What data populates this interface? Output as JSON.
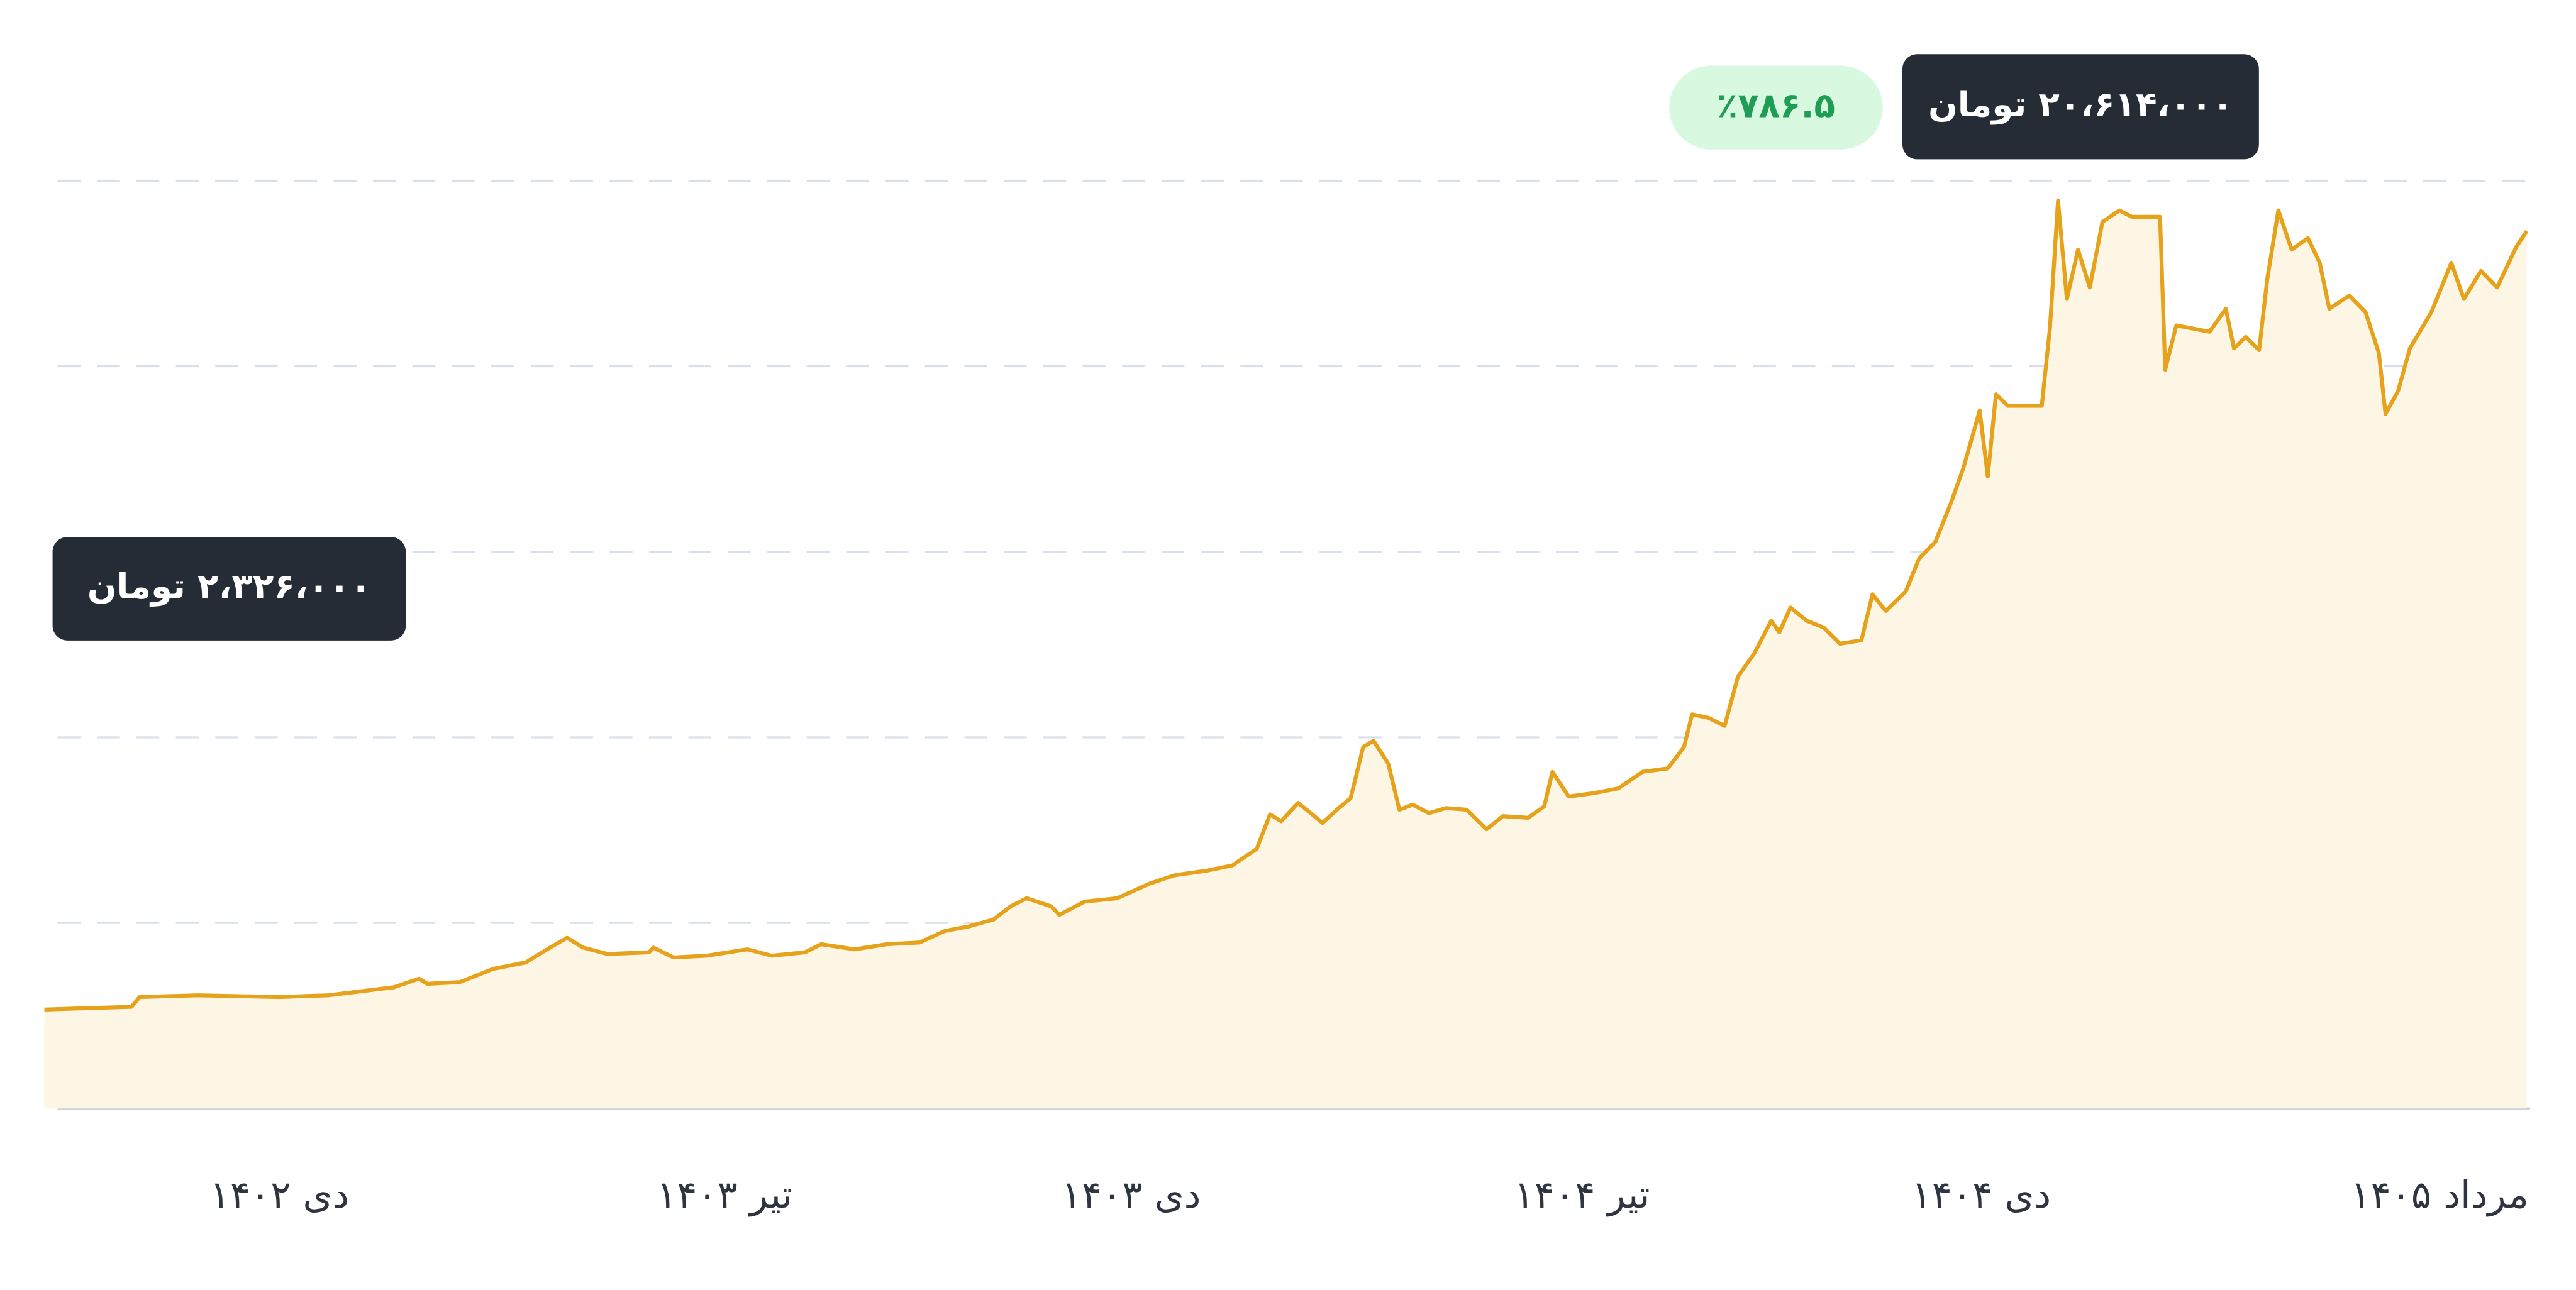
{
  "chart_data": {
    "type": "area",
    "color": "#e5a21a",
    "fill": "#fdf6e4",
    "grid": true,
    "x": [
      0,
      1.18,
      1.29,
      2.07,
      3.18,
      3.84,
      4.73,
      5.07,
      5.18,
      5.62,
      6.07,
      6.51,
      6.84,
      7.07,
      7.29,
      7.62,
      8.18,
      8.24,
      8.51,
      8.96,
      9.51,
      9.84,
      10.29,
      10.51,
      10.96,
      11.4,
      11.84,
      12.18,
      12.51,
      12.84,
      13.07,
      13.29,
      13.62,
      13.73,
      14.07,
      14.51,
      14.96,
      15.29,
      15.73,
      16.07,
      16.4,
      16.58,
      16.73,
      16.96,
      17.18,
      17.29,
      17.51,
      17.67,
      17.84,
      17.98,
      18.18,
      18.33,
      18.51,
      18.73,
      18.96,
      19.24,
      19.51,
      19.73,
      20.07,
      20.29,
      20.4,
      20.62,
      20.96,
      21.29,
      21.62,
      21.96,
      22.18,
      22.29,
      22.51,
      22.73,
      22.91,
      23.13,
      23.36,
      23.47,
      23.62,
      23.84,
      24.07,
      24.29,
      24.58,
      24.73,
      24.91,
      25.18,
      25.36,
      25.58,
      25.8,
      25.96,
      26.18,
      26.29,
      26.4,
      26.56,
      27.02,
      27.13,
      27.24,
      27.36,
      27.51,
      27.67,
      27.84,
      28.07,
      28.24,
      28.62,
      28.69,
      28.84,
      29.29,
      29.51,
      29.62,
      29.78,
      29.96,
      30.07,
      30.22,
      30.4,
      30.62,
      30.78,
      30.91,
      31.18,
      31.4,
      31.58,
      31.67,
      31.84,
      32.0,
      32.29,
      32.56,
      32.73,
      32.96,
      33.18,
      33.44,
      33.58
    ],
    "values": [
      2326000,
      2390000,
      2620000,
      2660000,
      2620000,
      2660000,
      2850000,
      3050000,
      2930000,
      2970000,
      3280000,
      3430000,
      3780000,
      4010000,
      3780000,
      3630000,
      3670000,
      3780000,
      3550000,
      3590000,
      3740000,
      3590000,
      3670000,
      3860000,
      3740000,
      3860000,
      3900000,
      4170000,
      4280000,
      4440000,
      4750000,
      4940000,
      4750000,
      4550000,
      4860000,
      4940000,
      5290000,
      5480000,
      5590000,
      5710000,
      6100000,
      6910000,
      6750000,
      7180000,
      6870000,
      6710000,
      7060000,
      7290000,
      8490000,
      8640000,
      8100000,
      7020000,
      7140000,
      6940000,
      7060000,
      7020000,
      6560000,
      6870000,
      6830000,
      7100000,
      7910000,
      7330000,
      7410000,
      7520000,
      7910000,
      7990000,
      8490000,
      9260000,
      9180000,
      8990000,
      10150000,
      10690000,
      11460000,
      11190000,
      11770000,
      11460000,
      11300000,
      10920000,
      11000000,
      12080000,
      11690000,
      12150000,
      12920000,
      13310000,
      14270000,
      15050000,
      16400000,
      14850000,
      16780000,
      16510000,
      16510000,
      18330000,
      21330000,
      19020000,
      20180000,
      19290000,
      20830000,
      21100000,
      20950000,
      20950000,
      17360000,
      18400000,
      18250000,
      18790000,
      17860000,
      18130000,
      17820000,
      19480000,
      21100000,
      20180000,
      20450000,
      19870000,
      18790000,
      19100000,
      18710000,
      17750000,
      16320000,
      16860000,
      17860000,
      18710000,
      19870000,
      19020000,
      19680000,
      19290000,
      20250000,
      20614000
    ],
    "xlim": [
      0,
      33.58
    ],
    "xticks": [
      {
        "value": 3.18,
        "label": "دی ۱۴۰۲"
      },
      {
        "value": 9.2,
        "label": "تیر ۱۴۰۳"
      },
      {
        "value": 14.7,
        "label": "دی ۱۴۰۳"
      },
      {
        "value": 20.8,
        "label": "تیر ۱۴۰۴"
      },
      {
        "value": 26.2,
        "label": "دی ۱۴۰۴"
      },
      {
        "value": 32.4,
        "label": "مرداد ۱۴۰۵"
      }
    ],
    "ylim": [
      0,
      21800000
    ],
    "yticks": [
      0,
      4360000,
      8720000,
      13080000,
      17440000,
      21800000
    ],
    "annotations": {
      "start_label": "۲،۳۲۶،۰۰۰ تومان",
      "end_label": "۲۰،۶۱۴،۰۰۰ تومان",
      "change_label": "٪۷۸۶.۵"
    }
  }
}
